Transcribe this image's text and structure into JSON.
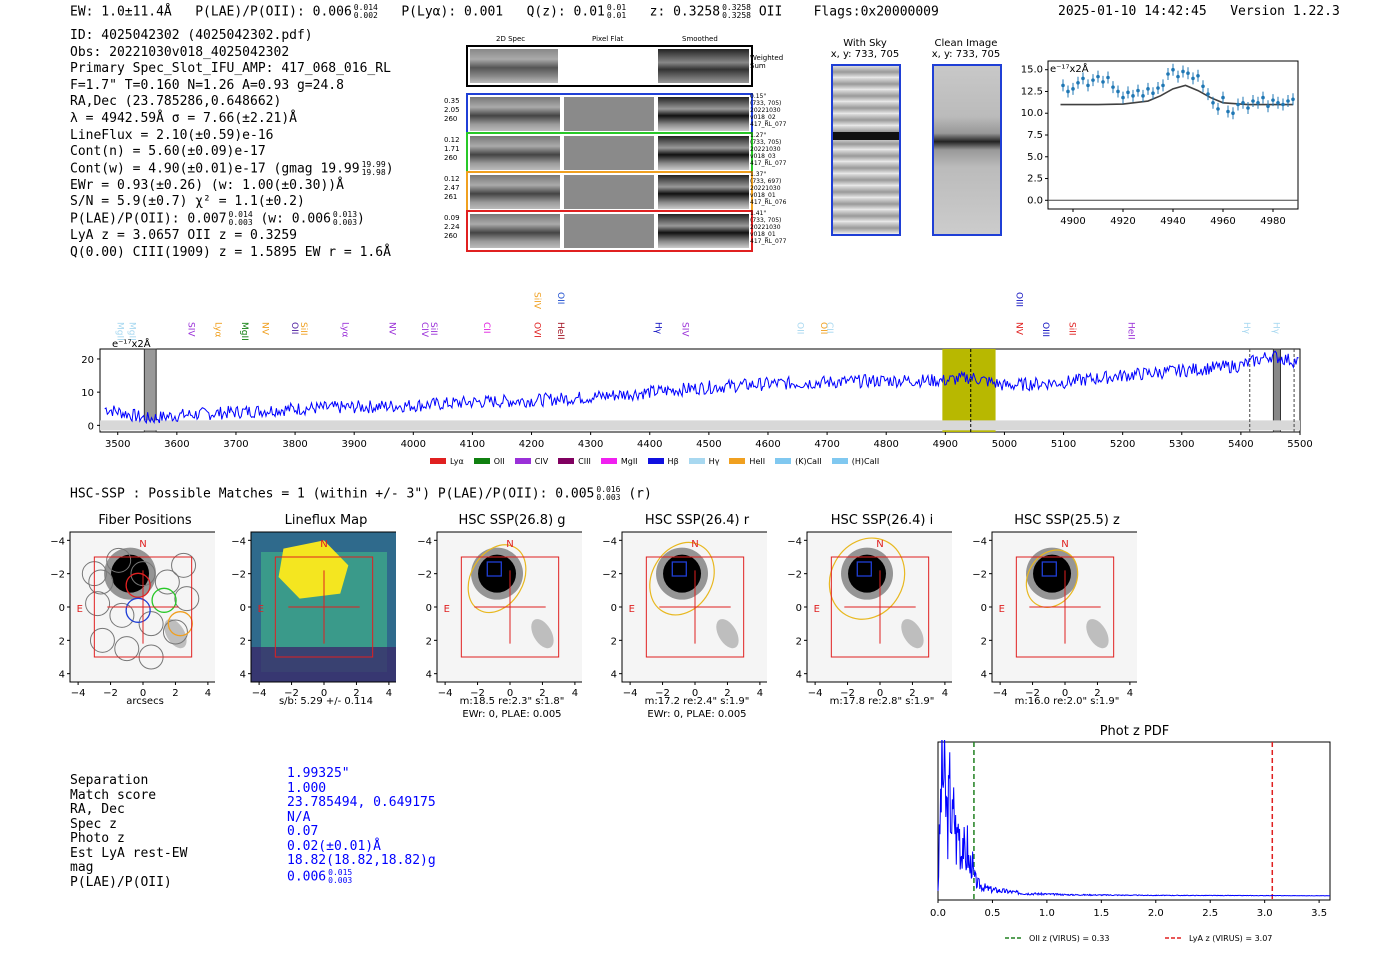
{
  "header": {
    "ew": "EW: 1.0±11.4Å",
    "plae_label": "P(LAE)/P(OII): 0.006",
    "plae_hi": "0.014",
    "plae_lo": "0.002",
    "plya": "P(Lyα): 0.001",
    "qz_label": "Q(z): 0.01",
    "qz_hi": "0.01",
    "qz_lo": "0.01",
    "z_label": "z: 0.3258",
    "z_hi": "0.3258",
    "z_lo": "0.3258",
    "z_line": "OII",
    "flags": "Flags:0x20000009",
    "timestamp": "2025-01-10 14:42:45",
    "version": "Version 1.22.3"
  },
  "info": {
    "id": "ID: 4025042302 (4025042302.pdf)",
    "obs": "Obs: 20221030v018_4025042302",
    "primary": "Primary Spec_Slot_IFU_AMP: 417_068_016_RL",
    "params": "F=1.7\"  T=0.160  N=1.26  A=0.93  g=24.8",
    "radec": "RA,Dec (23.785286,0.648662)",
    "lambda": "λ = 4942.59Å   σ = 7.66(±2.21)Å",
    "lineflux": "LineFlux = 2.10(±0.59)e-16",
    "contn": "Cont(n) = 5.60(±0.09)e-17",
    "contw": "Cont(w) = 4.90(±0.01)e-17 (gmag 19.99",
    "gmag_hi": "19.99",
    "gmag_lo": "19.98",
    "contw_end": ")",
    "ewr": "EWr = 0.93(±0.26) (w: 1.00(±0.30))Å",
    "sn": "S/N = 5.9(±0.7)  χ² = 1.1(±0.2)",
    "plae": "P(LAE)/P(OII): 0.007",
    "plae_hi": "0.014",
    "plae_lo": "0.003",
    "plae_w": "(w: 0.006",
    "plae_w_hi": "0.013",
    "plae_w_lo": "0.003",
    "plae_end": ")",
    "lya_z": "LyA z = 3.0657   OII z = 0.3259",
    "ciii": "Q(0.00) CIII(1909) z = 1.5895  EW r = 1.6Å"
  },
  "cutouts": {
    "col_2d": "2D Spec",
    "col_flat": "Pixel Flat",
    "col_smooth": "Smoothed",
    "weighted": "Weighted Sum",
    "rows": [
      {
        "a": "0.35",
        "b": "2.05",
        "c": "260",
        "note1": "0.15\"",
        "note2": "(733, 705)",
        "note3": "20221030",
        "note4": "v018_02",
        "note5": "417_RL_077",
        "color": "#1f3fd6"
      },
      {
        "a": "0.12",
        "b": "1.71",
        "c": "260",
        "note1": "1.27\"",
        "note2": "(733, 705)",
        "note3": "20221030",
        "note4": "v018_03",
        "note5": "417_RL_077",
        "color": "#28c828"
      },
      {
        "a": "0.12",
        "b": "2.47",
        "c": "261",
        "note1": "1.37\"",
        "note2": "(733, 697)",
        "note3": "20221030",
        "note4": "v018_01",
        "note5": "417_RL_076",
        "color": "#f0a020"
      },
      {
        "a": "0.09",
        "b": "2.24",
        "c": "260",
        "note1": "1.41\"",
        "note2": "(733, 705)",
        "note3": "20221030",
        "note4": "v018_01",
        "note5": "417_RL_077",
        "color": "#e02020"
      }
    ]
  },
  "sky": {
    "with_sky": "With Sky",
    "with_sky_xy": "x, y: 733, 705",
    "clean": "Clean Image",
    "clean_xy": "x, y: 733, 705"
  },
  "zoom_plot": {
    "units": "e⁻¹⁷x2Å",
    "xticks": [
      "4900",
      "4920",
      "4940",
      "4960",
      "4980"
    ],
    "yticks": [
      "0.0",
      "2.5",
      "5.0",
      "7.5",
      "10.0",
      "12.5",
      "15.0"
    ]
  },
  "spectrum": {
    "units": "e⁻¹⁷x2Å",
    "xticks": [
      "3500",
      "3600",
      "3700",
      "3800",
      "3900",
      "4000",
      "4100",
      "4200",
      "4300",
      "4400",
      "4500",
      "4600",
      "4700",
      "4800",
      "4900",
      "5000",
      "5100",
      "5200",
      "5300",
      "5400",
      "5500"
    ],
    "yticks": [
      "0",
      "10",
      "20"
    ],
    "line_labels": [
      {
        "t": "MgII",
        "w": 3500,
        "c": "#a8d8f0",
        "row": 0
      },
      {
        "t": "MgII",
        "w": 3520,
        "c": "#a8d8f0",
        "row": 0
      },
      {
        "t": "SIV",
        "w": 3620,
        "c": "#9a30d8",
        "row": 0
      },
      {
        "t": "Lyα",
        "w": 3665,
        "c": "#f0a020",
        "row": 0
      },
      {
        "t": "MgII",
        "w": 3710,
        "c": "#108010",
        "row": 0
      },
      {
        "t": "NV",
        "w": 3745,
        "c": "#f0a020",
        "row": 0
      },
      {
        "t": "OII",
        "w": 3795,
        "c": "#5020a0",
        "row": 0
      },
      {
        "t": "SiII",
        "w": 3810,
        "c": "#f0a020",
        "row": 0
      },
      {
        "t": "Lyα",
        "w": 3880,
        "c": "#9a30d8",
        "row": 0
      },
      {
        "t": "NV",
        "w": 3960,
        "c": "#9a30d8",
        "row": 0
      },
      {
        "t": "CIV",
        "w": 4015,
        "c": "#9a30d8",
        "row": 0
      },
      {
        "t": "SiII",
        "w": 4030,
        "c": "#9a30d8",
        "row": 0
      },
      {
        "t": "CII",
        "w": 4120,
        "c": "#e020e0",
        "row": 0
      },
      {
        "t": "SiIV",
        "w": 4205,
        "c": "#f0a020",
        "row": 1
      },
      {
        "t": "OVI",
        "w": 4205,
        "c": "#e02020",
        "row": 0
      },
      {
        "t": "OII",
        "w": 4245,
        "c": "#2050d0",
        "row": 1
      },
      {
        "t": "HeII",
        "w": 4245,
        "c": "#a01020",
        "row": 0
      },
      {
        "t": "Hγ",
        "w": 4410,
        "c": "#1010c0",
        "row": 0
      },
      {
        "t": "SIV",
        "w": 4455,
        "c": "#9a30d8",
        "row": 0
      },
      {
        "t": "OII",
        "w": 4650,
        "c": "#a8d8f0",
        "row": 0
      },
      {
        "t": "OII",
        "w": 4690,
        "c": "#f0a020",
        "row": 0
      },
      {
        "t": "CII",
        "w": 4700,
        "c": "#a8d8f0",
        "row": 0
      },
      {
        "t": "OIII",
        "w": 5020,
        "c": "#1010c0",
        "row": 1
      },
      {
        "t": "NV",
        "w": 5020,
        "c": "#e02020",
        "row": 0
      },
      {
        "t": "OIII",
        "w": 5065,
        "c": "#1010c0",
        "row": 0
      },
      {
        "t": "SiII",
        "w": 5110,
        "c": "#e02020",
        "row": 0
      },
      {
        "t": "HeII",
        "w": 5210,
        "c": "#9a30d8",
        "row": 0
      },
      {
        "t": "Hγ",
        "w": 5405,
        "c": "#a8d8f0",
        "row": 0
      },
      {
        "t": "Hγ",
        "w": 5455,
        "c": "#a8d8f0",
        "row": 0
      }
    ],
    "legend": [
      {
        "label": "Lyα",
        "color": "#e02020"
      },
      {
        "label": "OII",
        "color": "#108010"
      },
      {
        "label": "CIV",
        "color": "#9a30d8"
      },
      {
        "label": "CIII",
        "color": "#800060"
      },
      {
        "label": "MgII",
        "color": "#f020f0"
      },
      {
        "label": "Hβ",
        "color": "#1010e0"
      },
      {
        "label": "Hγ",
        "color": "#a8d8f0"
      },
      {
        "label": "HeII",
        "color": "#f0a020"
      },
      {
        "label": "(K)CaII",
        "color": "#80c8f0"
      },
      {
        "label": "(H)CaII",
        "color": "#80c8f0"
      }
    ]
  },
  "hsc": {
    "title": "HSC-SSP : Possible Matches = 1 (within +/- 3\")  P(LAE)/P(OII): 0.005",
    "title_hi": "0.016",
    "title_lo": "0.003",
    "title_end": "(r)",
    "panels": [
      {
        "title": "Fiber Positions",
        "cap1": "arcsecs",
        "cap2": ""
      },
      {
        "title": "Lineflux Map",
        "cap1": "s/b: 5.29 +/- 0.114",
        "cap2": ""
      },
      {
        "title": "HSC SSP(26.8) g",
        "cap1": "m:18.5  re:2.3\"  s:1.8\"",
        "cap2": "EWr: 0, PLAE: 0.005"
      },
      {
        "title": "HSC SSP(26.4) r",
        "cap1": "m:17.2  re:2.4\"  s:1.9\"",
        "cap2": "EWr: 0, PLAE: 0.005"
      },
      {
        "title": "HSC SSP(26.4) i",
        "cap1": "m:17.8  re:2.8\"  s:1.9\"",
        "cap2": ""
      },
      {
        "title": "HSC SSP(25.5) z",
        "cap1": "m:16.0  re:2.0\"  s:1.9\"",
        "cap2": ""
      }
    ],
    "axis_ticks": [
      "−4",
      "−2",
      "0",
      "2",
      "4"
    ],
    "label_n": "N",
    "label_e": "E"
  },
  "match_table": {
    "labels": [
      "Separation",
      "Match score",
      "RA, Dec",
      "Spec z",
      "Photo z",
      "Est LyA rest-EW",
      "mag",
      "P(LAE)/P(OII)"
    ],
    "values": [
      "1.99325\"",
      "1.000",
      "23.785494, 0.649175",
      "N/A",
      "0.07",
      "0.02(±0.01)Å",
      "18.82(18.82,18.82)g",
      "0.006"
    ],
    "plae_hi": "0.015",
    "plae_lo": "0.003"
  },
  "chart_data": [
    {
      "type": "line",
      "title": "",
      "ylabel": "e⁻¹⁷x2Å",
      "xlabel": "",
      "xlim": [
        3470,
        5500
      ],
      "ylim": [
        -2,
        23
      ],
      "highlight_band": [
        4895,
        4985
      ],
      "markers": [
        4943
      ],
      "series": [
        {
          "name": "spectrum",
          "color": "#0000ff",
          "x": [
            3480,
            3550,
            3600,
            3700,
            3800,
            3900,
            4000,
            4100,
            4200,
            4300,
            4400,
            4500,
            4600,
            4700,
            4800,
            4900,
            4943,
            5000,
            5100,
            5200,
            5300,
            5400,
            5450,
            5500
          ],
          "values": [
            5,
            2,
            3,
            4,
            5,
            5.5,
            6,
            7,
            7.5,
            8.5,
            10,
            11.5,
            12.5,
            13,
            13.5,
            13.5,
            14.5,
            12,
            13,
            15,
            16.5,
            18,
            21,
            19
          ]
        }
      ]
    },
    {
      "type": "scatter",
      "title": "",
      "ylabel": "e⁻¹⁷x2Å",
      "xlim": [
        4890,
        4990
      ],
      "ylim": [
        -1,
        16
      ],
      "series": [
        {
          "name": "data",
          "color": "#1f77b4",
          "x": [
            4896,
            4898,
            4900,
            4902,
            4904,
            4906,
            4908,
            4910,
            4912,
            4914,
            4916,
            4918,
            4920,
            4922,
            4924,
            4926,
            4928,
            4930,
            4932,
            4934,
            4936,
            4938,
            4940,
            4942,
            4944,
            4946,
            4948,
            4950,
            4952,
            4954,
            4956,
            4958,
            4960,
            4962,
            4964,
            4966,
            4968,
            4970,
            4972,
            4974,
            4976,
            4978,
            4980,
            4982,
            4984,
            4986,
            4988
          ],
          "values": [
            13.2,
            12.5,
            12.8,
            13.5,
            14.0,
            13.2,
            13.8,
            14.2,
            13.6,
            14.1,
            13.0,
            12.5,
            11.8,
            12.4,
            12.0,
            12.6,
            12.0,
            12.8,
            12.3,
            12.9,
            13.2,
            14.5,
            15.0,
            14.2,
            14.8,
            14.6,
            14.0,
            14.3,
            13.1,
            12.2,
            11.2,
            10.5,
            11.8,
            10.2,
            10.0,
            11.0,
            11.2,
            10.6,
            11.4,
            11.2,
            11.8,
            10.8,
            11.5,
            11.2,
            11.0,
            11.4,
            11.6
          ]
        },
        {
          "name": "fit",
          "color": "#404040",
          "x": [
            4895,
            4910,
            4920,
            4930,
            4935,
            4940,
            4945,
            4950,
            4955,
            4960,
            4970,
            4988
          ],
          "values": [
            11.0,
            11.0,
            11.05,
            11.4,
            12.0,
            12.8,
            13.2,
            12.6,
            11.8,
            11.2,
            11.0,
            11.0
          ]
        }
      ]
    },
    {
      "type": "line",
      "title": "Phot z PDF",
      "xlabel": "",
      "xlim": [
        0,
        3.6
      ],
      "xticks": [
        "0.0",
        "0.5",
        "1.0",
        "1.5",
        "2.0",
        "2.5",
        "3.0",
        "3.5"
      ],
      "vlines": [
        {
          "x": 0.33,
          "color": "#208020",
          "label": "OII z (VIRUS) = 0.33"
        },
        {
          "x": 3.07,
          "color": "#e02020",
          "label": "LyA z (VIRUS) = 3.07"
        }
      ],
      "series": [
        {
          "name": "pdf",
          "color": "#0000ff",
          "x": [
            0.0,
            0.03,
            0.05,
            0.07,
            0.09,
            0.11,
            0.13,
            0.15,
            0.17,
            0.19,
            0.21,
            0.23,
            0.25,
            0.27,
            0.29,
            0.31,
            0.33,
            0.36,
            0.4,
            0.45,
            0.5,
            0.6,
            0.7,
            0.8,
            1.0,
            1.2,
            1.5,
            2.0,
            2.5,
            3.0,
            3.6
          ],
          "values": [
            0.05,
            0.9,
            1.0,
            0.75,
            0.6,
            0.85,
            0.55,
            0.7,
            0.4,
            0.6,
            0.35,
            0.5,
            0.25,
            0.4,
            0.2,
            0.3,
            0.15,
            0.1,
            0.08,
            0.06,
            0.05,
            0.04,
            0.03,
            0.02,
            0.015,
            0.01,
            0.008,
            0.005,
            0.004,
            0.003,
            0.002
          ]
        }
      ]
    }
  ]
}
